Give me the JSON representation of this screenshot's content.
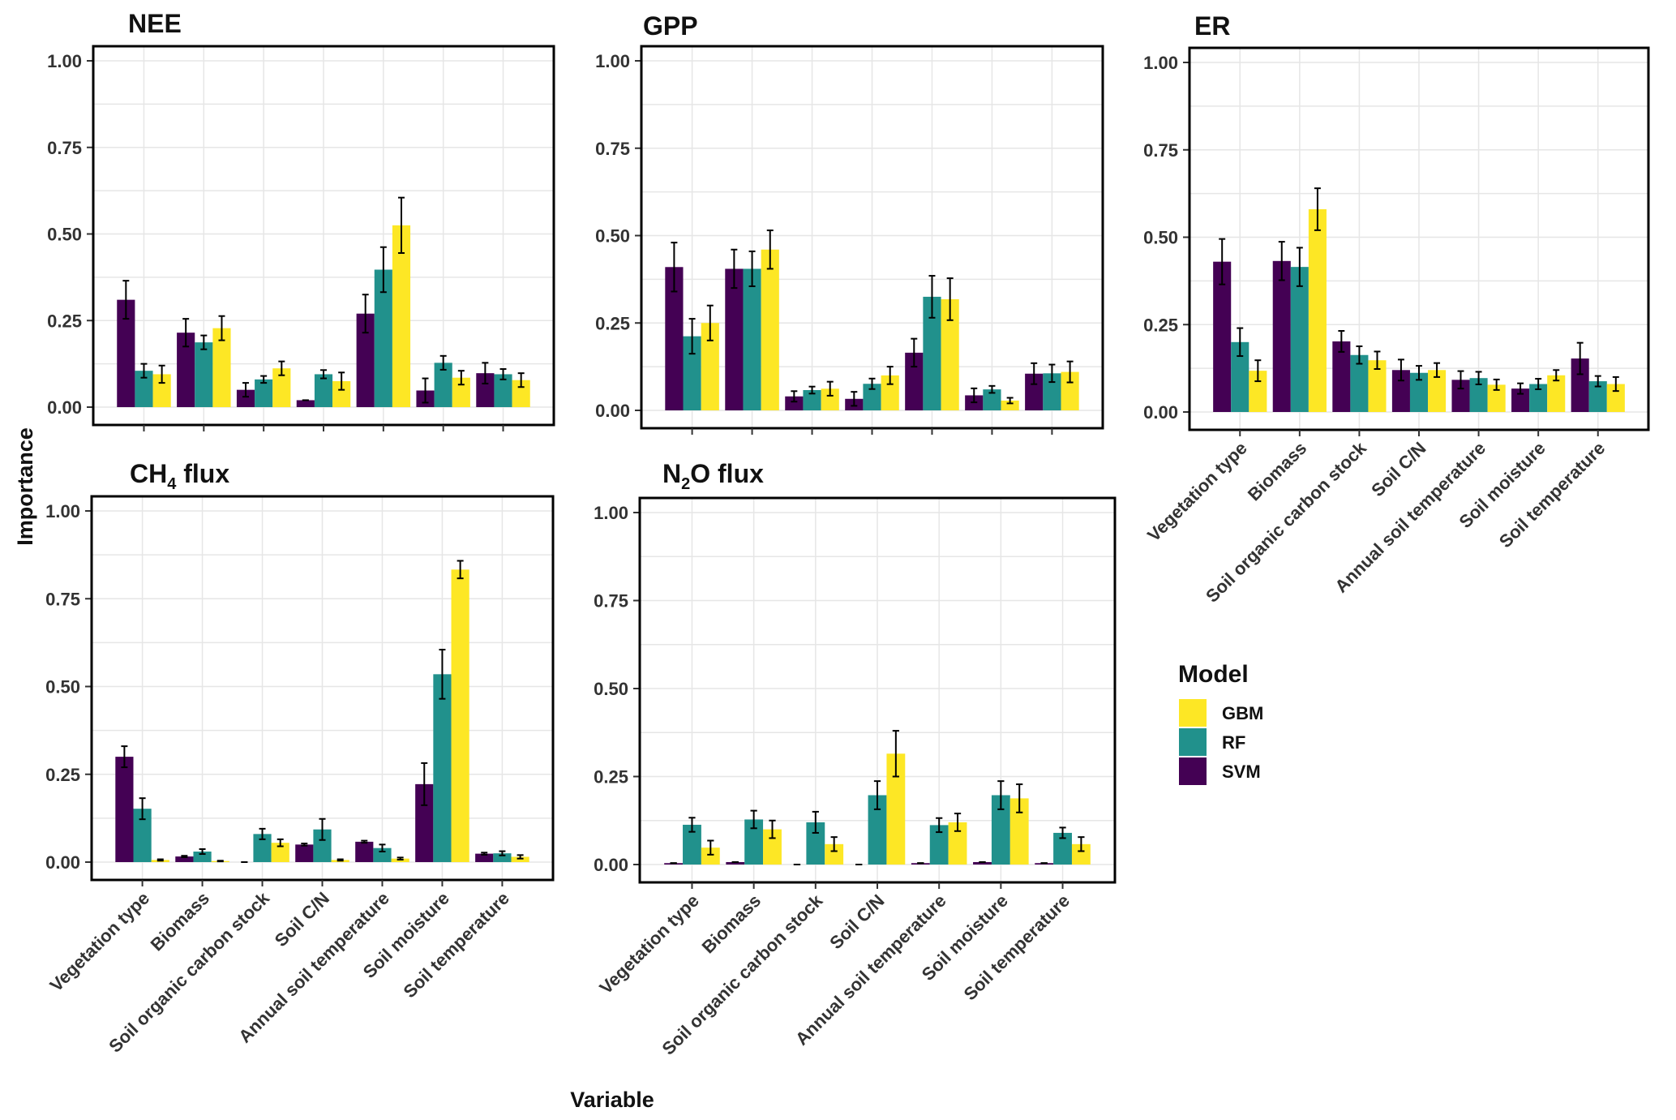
{
  "chart_data": [
    {
      "id": "nee",
      "title": "NEE",
      "title_sub": "",
      "title_rest": "",
      "type": "bar",
      "categories": [
        "Vegetation type",
        "Biomass",
        "Soil organic carbon stock",
        "Soil C/N",
        "Annual soil temperature",
        "Soil moisture",
        "Soil temperature"
      ],
      "ylim": [
        0,
        1.05
      ],
      "yticks": [
        "0.00",
        "0.25",
        "0.50",
        "0.75",
        "1.00"
      ],
      "series": [
        {
          "name": "SVM",
          "values": [
            0.31,
            0.215,
            0.05,
            0.02,
            0.27,
            0.048,
            0.098
          ],
          "errors": [
            0.055,
            0.04,
            0.02,
            0.0,
            0.055,
            0.035,
            0.03
          ]
        },
        {
          "name": "RF",
          "values": [
            0.105,
            0.187,
            0.08,
            0.095,
            0.397,
            0.128,
            0.095
          ],
          "errors": [
            0.02,
            0.02,
            0.01,
            0.012,
            0.065,
            0.02,
            0.015
          ]
        },
        {
          "name": "GBM",
          "values": [
            0.095,
            0.228,
            0.112,
            0.075,
            0.525,
            0.085,
            0.078
          ],
          "errors": [
            0.025,
            0.035,
            0.02,
            0.025,
            0.08,
            0.02,
            0.02
          ]
        }
      ]
    },
    {
      "id": "gpp",
      "title": "GPP",
      "title_sub": "",
      "title_rest": "",
      "type": "bar",
      "categories": [
        "Vegetation type",
        "Biomass",
        "Soil organic carbon stock",
        "Soil C/N",
        "Annual soil temperature",
        "Soil moisture",
        "Soil temperature"
      ],
      "ylim": [
        0,
        1.05
      ],
      "yticks": [
        "0.00",
        "0.25",
        "0.50",
        "0.75",
        "1.00"
      ],
      "series": [
        {
          "name": "SVM",
          "values": [
            0.41,
            0.405,
            0.04,
            0.033,
            0.165,
            0.043,
            0.105
          ],
          "errors": [
            0.07,
            0.055,
            0.015,
            0.02,
            0.04,
            0.02,
            0.03
          ]
        },
        {
          "name": "RF",
          "values": [
            0.212,
            0.405,
            0.058,
            0.076,
            0.325,
            0.06,
            0.106
          ],
          "errors": [
            0.05,
            0.05,
            0.01,
            0.015,
            0.06,
            0.01,
            0.025
          ]
        },
        {
          "name": "GBM",
          "values": [
            0.25,
            0.46,
            0.062,
            0.1,
            0.318,
            0.028,
            0.11
          ],
          "errors": [
            0.05,
            0.055,
            0.02,
            0.025,
            0.06,
            0.008,
            0.03
          ]
        }
      ]
    },
    {
      "id": "er",
      "title": "ER",
      "title_sub": "",
      "title_rest": "",
      "type": "bar",
      "categories": [
        "Vegetation type",
        "Biomass",
        "Soil organic carbon stock",
        "Soil C/N",
        "Annual soil temperature",
        "Soil moisture",
        "Soil temperature"
      ],
      "ylim": [
        0,
        1.05
      ],
      "yticks": [
        "0.00",
        "0.25",
        "0.50",
        "0.75",
        "1.00"
      ],
      "series": [
        {
          "name": "SVM",
          "values": [
            0.43,
            0.432,
            0.202,
            0.12,
            0.092,
            0.067,
            0.153
          ],
          "errors": [
            0.065,
            0.055,
            0.03,
            0.03,
            0.025,
            0.015,
            0.045
          ]
        },
        {
          "name": "RF",
          "values": [
            0.2,
            0.415,
            0.163,
            0.112,
            0.097,
            0.08,
            0.088
          ],
          "errors": [
            0.04,
            0.055,
            0.025,
            0.02,
            0.018,
            0.015,
            0.015
          ]
        },
        {
          "name": "GBM",
          "values": [
            0.118,
            0.58,
            0.148,
            0.12,
            0.078,
            0.105,
            0.08
          ],
          "errors": [
            0.03,
            0.06,
            0.025,
            0.02,
            0.015,
            0.015,
            0.02
          ]
        }
      ]
    },
    {
      "id": "ch4",
      "title": "CH",
      "title_sub": "4",
      "title_rest": " flux",
      "type": "bar",
      "categories": [
        "Vegetation type",
        "Biomass",
        "Soil organic carbon stock",
        "Soil C/N",
        "Annual soil temperature",
        "Soil moisture",
        "Soil temperature"
      ],
      "ylim": [
        0,
        1.05
      ],
      "yticks": [
        "0.00",
        "0.25",
        "0.50",
        "0.75",
        "1.00"
      ],
      "series": [
        {
          "name": "SVM",
          "values": [
            0.3,
            0.016,
            0.0,
            0.05,
            0.058,
            0.222,
            0.024
          ],
          "errors": [
            0.03,
            0.002,
            0.0,
            0.003,
            0.003,
            0.06,
            0.003
          ]
        },
        {
          "name": "RF",
          "values": [
            0.152,
            0.03,
            0.08,
            0.093,
            0.04,
            0.535,
            0.025
          ],
          "errors": [
            0.03,
            0.007,
            0.015,
            0.03,
            0.01,
            0.07,
            0.006
          ]
        },
        {
          "name": "GBM",
          "values": [
            0.006,
            0.003,
            0.055,
            0.006,
            0.01,
            0.833,
            0.015
          ],
          "errors": [
            0.002,
            0.001,
            0.01,
            0.002,
            0.003,
            0.025,
            0.005
          ]
        }
      ]
    },
    {
      "id": "n2o",
      "title": "N",
      "title_sub": "2",
      "title_rest": "O flux",
      "type": "bar",
      "categories": [
        "Vegetation type",
        "Biomass",
        "Soil organic carbon stock",
        "Soil C/N",
        "Annual soil temperature",
        "Soil moisture",
        "Soil temperature"
      ],
      "ylim": [
        0,
        1.05
      ],
      "yticks": [
        "0.00",
        "0.25",
        "0.50",
        "0.75",
        "1.00"
      ],
      "series": [
        {
          "name": "SVM",
          "values": [
            0.004,
            0.007,
            0.0,
            0.0,
            0.004,
            0.007,
            0.004
          ],
          "errors": [
            0.0,
            0.0,
            0.0,
            0.0,
            0.0,
            0.0,
            0.0
          ]
        },
        {
          "name": "RF",
          "values": [
            0.113,
            0.128,
            0.12,
            0.197,
            0.112,
            0.197,
            0.09
          ],
          "errors": [
            0.02,
            0.025,
            0.03,
            0.04,
            0.02,
            0.04,
            0.015
          ]
        },
        {
          "name": "GBM",
          "values": [
            0.048,
            0.1,
            0.058,
            0.315,
            0.12,
            0.188,
            0.058
          ],
          "errors": [
            0.02,
            0.025,
            0.02,
            0.065,
            0.025,
            0.04,
            0.02
          ]
        }
      ]
    }
  ],
  "axes": {
    "ylabel": "Importance",
    "xlabel": "Variable"
  },
  "legend": {
    "title": "Model",
    "items": [
      {
        "label": "GBM",
        "color": "#fde725"
      },
      {
        "label": "RF",
        "color": "#21918c"
      },
      {
        "label": "SVM",
        "color": "#440154"
      }
    ]
  },
  "colors": {
    "SVM": "#440154",
    "RF": "#21918c",
    "GBM": "#fde725"
  }
}
